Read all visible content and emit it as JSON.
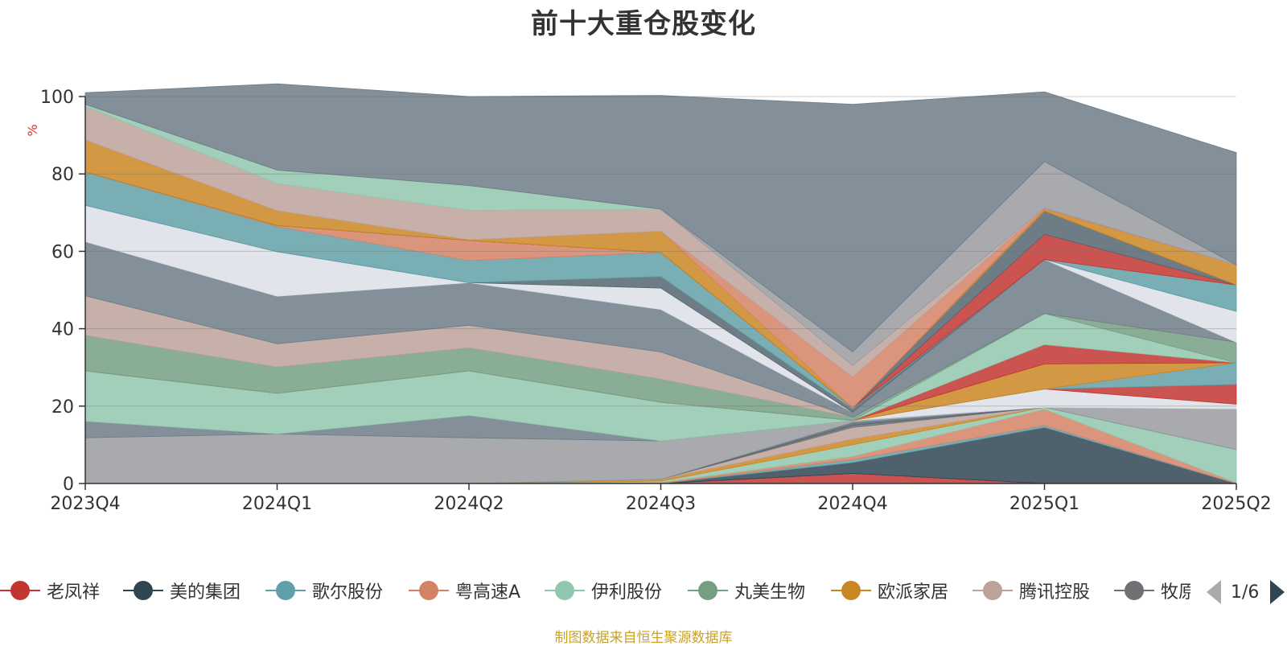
{
  "title": "前十大重仓股变化",
  "source_note": "制图数据来自恒生聚源数据库",
  "pager": {
    "text": "1/6"
  },
  "legend": [
    {
      "label": "老凤祥",
      "color": "#c23531"
    },
    {
      "label": "美的集团",
      "color": "#2f4554"
    },
    {
      "label": "歌尔股份",
      "color": "#61a0a8"
    },
    {
      "label": "粤高速A",
      "color": "#d48265"
    },
    {
      "label": "伊利股份",
      "color": "#91c7ae"
    },
    {
      "label": "丸美生物",
      "color": "#749f83"
    },
    {
      "label": "欧派家居",
      "color": "#ca8622"
    },
    {
      "label": "腾讯控股",
      "color": "#bda29a"
    },
    {
      "label": "牧原",
      "color": "#6e7074"
    }
  ],
  "chart_data": {
    "type": "area",
    "stacked": true,
    "categories": [
      "2023Q4",
      "2024Q1",
      "2024Q2",
      "2024Q3",
      "2024Q4",
      "2025Q1",
      "2025Q2"
    ],
    "ylabel": "%",
    "ylim": [
      0,
      100
    ],
    "yticks": [
      0,
      20,
      40,
      60,
      80,
      100
    ],
    "grid": true,
    "series": [
      {
        "color": "#c23531",
        "values": [
          0,
          0,
          0,
          0,
          2.6,
          0,
          0
        ]
      },
      {
        "color": "#2f4554",
        "values": [
          0,
          0,
          0,
          0,
          2.8,
          14.5,
          0
        ]
      },
      {
        "color": "#61a0a8",
        "values": [
          0,
          0,
          0,
          0,
          0.8,
          0.5,
          0
        ]
      },
      {
        "color": "#d48265",
        "values": [
          0,
          0,
          0,
          0.3,
          0.8,
          4.2,
          0.2
        ]
      },
      {
        "color": "#91c7ae",
        "values": [
          0,
          0,
          0,
          0.3,
          3.0,
          0.5,
          8.6
        ]
      },
      {
        "color": "#ca8622",
        "values": [
          0,
          0,
          0,
          0.5,
          1.5,
          0,
          0
        ]
      },
      {
        "color": "#bda29a",
        "values": [
          0,
          0,
          0,
          0,
          3.0,
          0,
          0
        ]
      },
      {
        "color": "#6e7074",
        "values": [
          0,
          0,
          0,
          0,
          0.5,
          0,
          0
        ]
      },
      {
        "color": "#546570",
        "values": [
          0,
          0,
          0,
          0,
          0.8,
          0,
          0
        ]
      },
      {
        "color": "#9a9ba0",
        "values": [
          11.8,
          12.8,
          11.8,
          9.9,
          0.5,
          0,
          10.5
        ]
      },
      {
        "color": "#6e7c87",
        "values": [
          4.3,
          0,
          5.8,
          0,
          0,
          0,
          0
        ]
      },
      {
        "color": "#91c7ae",
        "values": [
          13.0,
          10.5,
          11.5,
          10.0,
          0,
          0,
          0
        ]
      },
      {
        "color": "#dcdfe6",
        "values": [
          0,
          0,
          0,
          0,
          0,
          4.7,
          1.2
        ]
      },
      {
        "color": "#c23531",
        "values": [
          0,
          0,
          0,
          0,
          0,
          0,
          5.1
        ]
      },
      {
        "color": "#61a0a8",
        "values": [
          0,
          0,
          0,
          0,
          0,
          0,
          5.6
        ]
      },
      {
        "color": "#ca8622",
        "values": [
          0,
          0,
          0,
          0,
          0,
          6.5,
          0
        ]
      },
      {
        "color": "#c23531",
        "values": [
          0,
          0,
          0,
          0,
          0,
          5.0,
          0
        ]
      },
      {
        "color": "#91c7ae",
        "values": [
          0,
          0,
          0,
          0,
          0,
          8.0,
          0
        ]
      },
      {
        "color": "#749f83",
        "values": [
          9.2,
          6.8,
          6.0,
          6.0,
          0.8,
          0,
          5.3
        ]
      },
      {
        "color": "#bda29a",
        "values": [
          10.2,
          6.0,
          5.8,
          7.0,
          0,
          0,
          0
        ]
      },
      {
        "color": "#6e7c87",
        "values": [
          14.0,
          12.3,
          11.0,
          11.0,
          1.3,
          14.0,
          0
        ]
      },
      {
        "color": "#dcdfe6",
        "values": [
          9.4,
          11.5,
          0,
          5.5,
          0,
          0,
          8.0
        ]
      },
      {
        "color": "#546570",
        "values": [
          0,
          0,
          0,
          3.0,
          0.8,
          0,
          0
        ]
      },
      {
        "color": "#61a0a8",
        "values": [
          8.6,
          6.5,
          5.7,
          6.2,
          0.3,
          0,
          6.8
        ]
      },
      {
        "color": "#d48265",
        "values": [
          0,
          0.3,
          5.2,
          0,
          0,
          0,
          0
        ]
      },
      {
        "color": "#c23531",
        "values": [
          0,
          0,
          0,
          0,
          0,
          6.5,
          0
        ]
      },
      {
        "color": "#546570",
        "values": [
          0,
          0,
          0,
          0,
          0,
          6.0,
          0
        ]
      },
      {
        "color": "#ca8622",
        "values": [
          8.3,
          3.8,
          0.2,
          5.5,
          0,
          0.5,
          5.2
        ]
      },
      {
        "color": "#d48265",
        "values": [
          0,
          0,
          0,
          0,
          8.0,
          0.3,
          0
        ]
      },
      {
        "color": "#bda29a",
        "values": [
          8.7,
          7.0,
          7.6,
          5.7,
          3.0,
          0,
          0
        ]
      },
      {
        "color": "#91c7ae",
        "values": [
          0.5,
          3.5,
          6.4,
          0,
          0,
          0,
          0
        ]
      },
      {
        "color": "#9a9ba0",
        "values": [
          0,
          0,
          0,
          0,
          3.5,
          12.0,
          0
        ]
      },
      {
        "color": "#6e7c87",
        "values": [
          3.0,
          22.3,
          23.0,
          29.4,
          64.0,
          18.0,
          29.0
        ]
      }
    ]
  }
}
